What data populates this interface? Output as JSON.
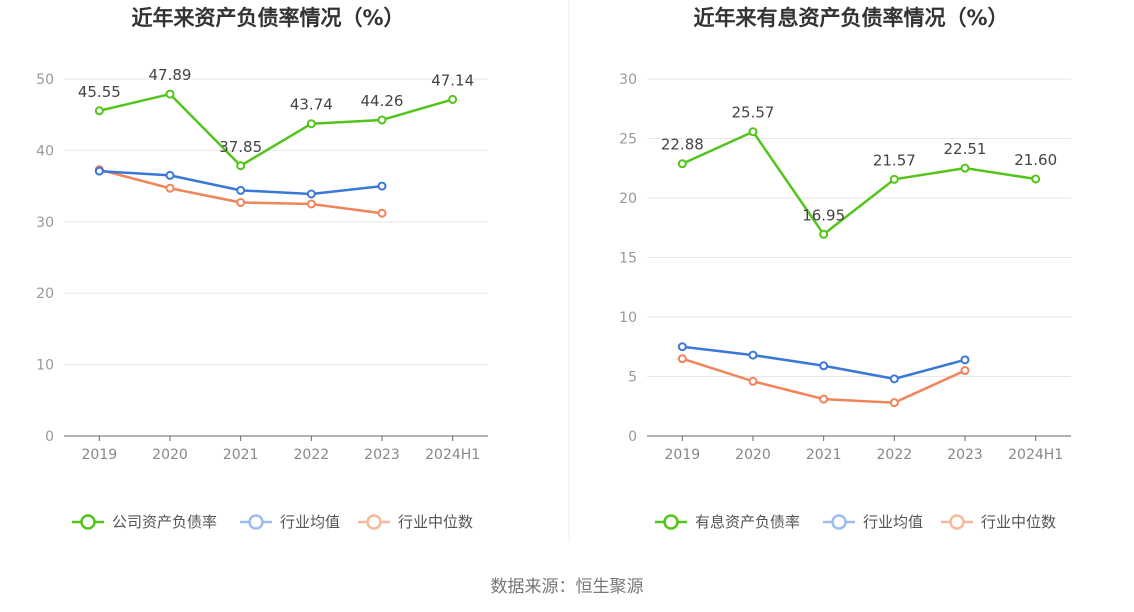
{
  "source_label": "数据来源：恒生聚源",
  "chart_data": [
    {
      "type": "line",
      "title": "近年来资产负债率情况（%）",
      "categories": [
        "2019",
        "2020",
        "2021",
        "2022",
        "2023",
        "2024H1"
      ],
      "ylim": [
        0,
        50
      ],
      "yticks": [
        0,
        10,
        20,
        30,
        40,
        50
      ],
      "grid": true,
      "legend_position": "bottom",
      "series": [
        {
          "name": "公司资产负债率",
          "color": "#52c41a",
          "values": [
            45.55,
            47.89,
            37.85,
            43.74,
            44.26,
            47.14
          ],
          "labels": [
            "45.55",
            "47.89",
            "37.85",
            "43.74",
            "44.26",
            "47.14"
          ]
        },
        {
          "name": "行业均值",
          "color": "#3a78d8",
          "values": [
            37.1,
            36.5,
            34.4,
            33.9,
            35.0,
            null
          ]
        },
        {
          "name": "行业中位数",
          "color": "#f0845a",
          "values": [
            37.3,
            34.7,
            32.7,
            32.5,
            31.2,
            null
          ]
        }
      ]
    },
    {
      "type": "line",
      "title": "近年来有息资产负债率情况（%）",
      "categories": [
        "2019",
        "2020",
        "2021",
        "2022",
        "2023",
        "2024H1"
      ],
      "ylim": [
        0,
        30
      ],
      "yticks": [
        0,
        5,
        10,
        15,
        20,
        25,
        30
      ],
      "grid": true,
      "legend_position": "bottom",
      "series": [
        {
          "name": "有息资产负债率",
          "color": "#52c41a",
          "values": [
            22.88,
            25.57,
            16.95,
            21.57,
            22.51,
            21.6
          ],
          "labels": [
            "22.88",
            "25.57",
            "16.95",
            "21.57",
            "22.51",
            "21.60"
          ]
        },
        {
          "name": "行业均值",
          "color": "#3a78d8",
          "values": [
            7.5,
            6.8,
            5.9,
            4.8,
            6.4,
            null
          ]
        },
        {
          "name": "行业中位数",
          "color": "#f0845a",
          "values": [
            6.5,
            4.6,
            3.1,
            2.8,
            5.5,
            null
          ]
        }
      ]
    }
  ]
}
